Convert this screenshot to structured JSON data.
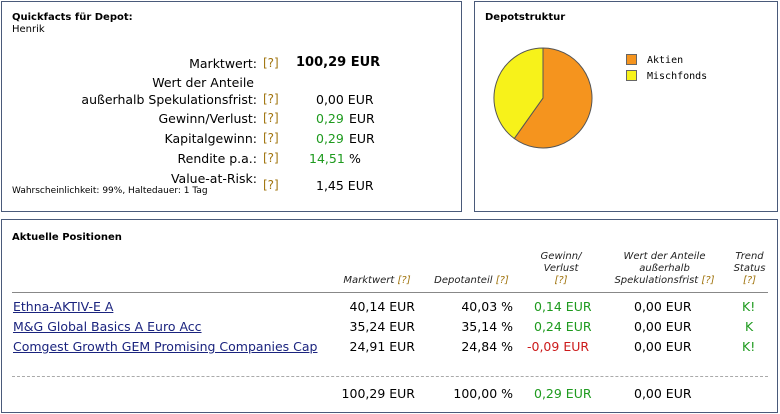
{
  "quickfacts": {
    "title": "Quickfacts für Depot:",
    "owner": "Henrik",
    "hint": "[?]",
    "rows": [
      {
        "label": "Marktwert:",
        "value": "100,29 EUR"
      },
      {
        "label_line1": "Wert der Anteile",
        "label_line2": "außerhalb Spekulationsfrist:",
        "value": "0,00 EUR"
      },
      {
        "label": "Gewinn/Verlust:",
        "value": "0,29",
        "unit": "EUR"
      },
      {
        "label": "Kapitalgewinn:",
        "value": "0,29",
        "unit": "EUR"
      },
      {
        "label": "Rendite p.a.:",
        "value": "14,51",
        "unit": "%"
      },
      {
        "label": "Value-at-Risk:",
        "note": "Wahrscheinlichkeit: 99%, Haltedauer: 1 Tag",
        "value": "1,45 EUR"
      }
    ]
  },
  "depotstruktur": {
    "title": "Depotstruktur",
    "colors": {
      "aktien": "#f5941e",
      "mischfonds": "#f7f21a"
    },
    "legend": [
      "Aktien",
      "Mischfonds"
    ]
  },
  "chart_data": {
    "type": "pie",
    "title": "Depotstruktur",
    "series": [
      {
        "values": [
          59.97,
          40.03
        ]
      }
    ],
    "categories": [
      "Aktien",
      "Mischfonds"
    ],
    "legend_position": "right"
  },
  "positions": {
    "title": "Aktuelle Positionen",
    "hint": "[?]",
    "headers": {
      "marktwert": "Marktwert",
      "depotanteil": "Depotanteil",
      "gewinn_l1": "Gewinn/",
      "gewinn_l2": "Verlust",
      "wert_l1": "Wert der Anteile",
      "wert_l2": "außerhalb",
      "wert_l3": "Spekulationsfrist",
      "trend_l1": "Trend",
      "trend_l2": "Status"
    },
    "rows": [
      {
        "name": "Ethna-AKTIV-E A",
        "marktwert": "40,14 EUR",
        "anteil": "40,03 %",
        "gewinn": "0,14 EUR",
        "wert": "0,00 EUR",
        "trend": "K!"
      },
      {
        "name": "M&G Global Basics A Euro Acc",
        "marktwert": "35,24 EUR",
        "anteil": "35,14 %",
        "gewinn": "0,24 EUR",
        "wert": "0,00 EUR",
        "trend": "K"
      },
      {
        "name": "Comgest Growth GEM Promising Companies Cap",
        "marktwert": "24,91 EUR",
        "anteil": "24,84 %",
        "gewinn": "-0,09 EUR",
        "wert": "0,00 EUR",
        "trend": "K!"
      }
    ],
    "totals": {
      "marktwert": "100,29 EUR",
      "anteil": "100,00 %",
      "gewinn": "0,29 EUR",
      "wert": "0,00 EUR"
    }
  }
}
